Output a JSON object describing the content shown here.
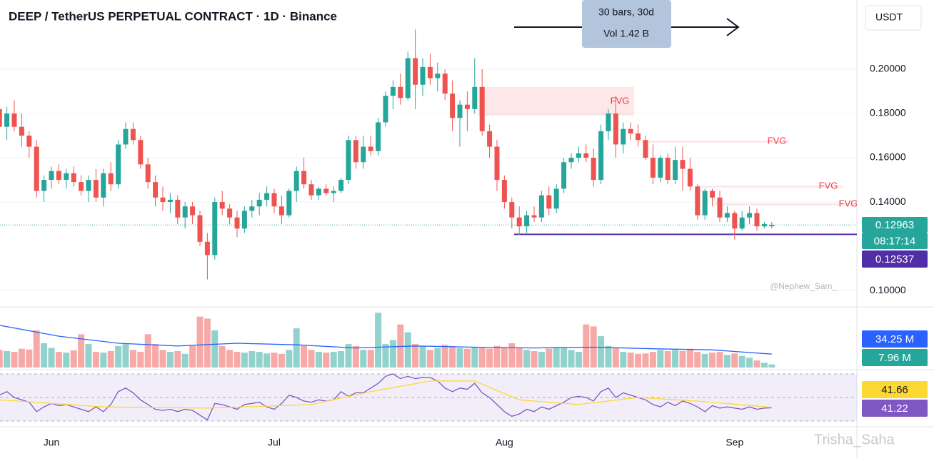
{
  "chart_data": {
    "type": "candlestick",
    "title": "DEEP / TetherUS PERPETUAL CONTRACT · 1D · Binance",
    "currency": "USDT",
    "measure": {
      "line1": "30 bars, 30d",
      "line2": "Vol 1.42 B"
    },
    "watermarks": [
      "@Nephew_Sam_",
      "Trisha_Saha"
    ],
    "colors": {
      "up": "#26a69a",
      "down": "#ef5350",
      "volume_ma": "#2962ff",
      "rsi": "#7e57c2",
      "rsi_ma": "#fdd835",
      "support": "#512da8"
    },
    "categories": [
      null,
      null,
      null,
      null,
      null,
      null,
      null,
      "Jun",
      null,
      null,
      null,
      null,
      null,
      null,
      null,
      null,
      null,
      null,
      null,
      null,
      null,
      null,
      null,
      null,
      null,
      null,
      null,
      null,
      null,
      null,
      null,
      null,
      null,
      null,
      null,
      null,
      null,
      "Jul",
      null,
      null,
      null,
      null,
      null,
      null,
      null,
      null,
      null,
      null,
      null,
      null,
      null,
      null,
      null,
      null,
      null,
      null,
      null,
      null,
      null,
      null,
      null,
      null,
      null,
      null,
      null,
      null,
      null,
      null,
      "Aug",
      null,
      null,
      null,
      null,
      null,
      null,
      null,
      null,
      null,
      null,
      null,
      null,
      null,
      null,
      null,
      null,
      null,
      null,
      null,
      null,
      null,
      null,
      null,
      null,
      null,
      null,
      null,
      null,
      null,
      null,
      "Sep",
      null,
      null,
      null,
      null,
      null
    ],
    "ohlc": [
      [
        0.182,
        0.186,
        0.17,
        0.174
      ],
      [
        0.174,
        0.183,
        0.168,
        0.18
      ],
      [
        0.18,
        0.186,
        0.172,
        0.174
      ],
      [
        0.174,
        0.18,
        0.165,
        0.17
      ],
      [
        0.17,
        0.172,
        0.16,
        0.165
      ],
      [
        0.165,
        0.168,
        0.142,
        0.145
      ],
      [
        0.145,
        0.152,
        0.14,
        0.15
      ],
      [
        0.15,
        0.156,
        0.146,
        0.154
      ],
      [
        0.154,
        0.157,
        0.148,
        0.15
      ],
      [
        0.15,
        0.155,
        0.146,
        0.153
      ],
      [
        0.153,
        0.156,
        0.147,
        0.149
      ],
      [
        0.149,
        0.152,
        0.143,
        0.145
      ],
      [
        0.145,
        0.152,
        0.14,
        0.15
      ],
      [
        0.15,
        0.155,
        0.14,
        0.142
      ],
      [
        0.142,
        0.155,
        0.138,
        0.153
      ],
      [
        0.153,
        0.158,
        0.145,
        0.148
      ],
      [
        0.148,
        0.168,
        0.146,
        0.166
      ],
      [
        0.166,
        0.176,
        0.164,
        0.173
      ],
      [
        0.173,
        0.176,
        0.166,
        0.168
      ],
      [
        0.168,
        0.17,
        0.155,
        0.157
      ],
      [
        0.157,
        0.16,
        0.146,
        0.149
      ],
      [
        0.149,
        0.152,
        0.138,
        0.142
      ],
      [
        0.142,
        0.147,
        0.136,
        0.14
      ],
      [
        0.14,
        0.144,
        0.135,
        0.141
      ],
      [
        0.141,
        0.143,
        0.13,
        0.133
      ],
      [
        0.133,
        0.14,
        0.128,
        0.138
      ],
      [
        0.138,
        0.14,
        0.13,
        0.134
      ],
      [
        0.134,
        0.136,
        0.12,
        0.122
      ],
      [
        0.122,
        0.126,
        0.105,
        0.116
      ],
      [
        0.116,
        0.142,
        0.114,
        0.14
      ],
      [
        0.14,
        0.145,
        0.134,
        0.137
      ],
      [
        0.137,
        0.139,
        0.13,
        0.133
      ],
      [
        0.133,
        0.136,
        0.124,
        0.128
      ],
      [
        0.128,
        0.138,
        0.126,
        0.136
      ],
      [
        0.136,
        0.141,
        0.133,
        0.138
      ],
      [
        0.138,
        0.144,
        0.134,
        0.141
      ],
      [
        0.141,
        0.147,
        0.138,
        0.144
      ],
      [
        0.144,
        0.146,
        0.135,
        0.138
      ],
      [
        0.138,
        0.143,
        0.13,
        0.134
      ],
      [
        0.134,
        0.146,
        0.133,
        0.145
      ],
      [
        0.145,
        0.156,
        0.14,
        0.154
      ],
      [
        0.154,
        0.16,
        0.146,
        0.148
      ],
      [
        0.148,
        0.15,
        0.141,
        0.143
      ],
      [
        0.143,
        0.147,
        0.141,
        0.146
      ],
      [
        0.146,
        0.148,
        0.143,
        0.144
      ],
      [
        0.144,
        0.147,
        0.14,
        0.145
      ],
      [
        0.145,
        0.151,
        0.144,
        0.15
      ],
      [
        0.15,
        0.17,
        0.148,
        0.168
      ],
      [
        0.168,
        0.17,
        0.155,
        0.158
      ],
      [
        0.158,
        0.17,
        0.155,
        0.165
      ],
      [
        0.165,
        0.17,
        0.161,
        0.163
      ],
      [
        0.163,
        0.178,
        0.161,
        0.176
      ],
      [
        0.176,
        0.19,
        0.174,
        0.188
      ],
      [
        0.188,
        0.195,
        0.182,
        0.192
      ],
      [
        0.192,
        0.198,
        0.184,
        0.187
      ],
      [
        0.187,
        0.208,
        0.186,
        0.205
      ],
      [
        0.205,
        0.218,
        0.182,
        0.193
      ],
      [
        0.193,
        0.205,
        0.188,
        0.201
      ],
      [
        0.201,
        0.207,
        0.193,
        0.196
      ],
      [
        0.196,
        0.203,
        0.19,
        0.198
      ],
      [
        0.198,
        0.2,
        0.186,
        0.189
      ],
      [
        0.189,
        0.195,
        0.172,
        0.178
      ],
      [
        0.178,
        0.186,
        0.165,
        0.184
      ],
      [
        0.184,
        0.19,
        0.172,
        0.182
      ],
      [
        0.182,
        0.205,
        0.18,
        0.192
      ],
      [
        0.192,
        0.2,
        0.17,
        0.172
      ],
      [
        0.172,
        0.175,
        0.16,
        0.165
      ],
      [
        0.165,
        0.168,
        0.145,
        0.15
      ],
      [
        0.15,
        0.152,
        0.137,
        0.14
      ],
      [
        0.14,
        0.142,
        0.128,
        0.133
      ],
      [
        0.133,
        0.138,
        0.125,
        0.129
      ],
      [
        0.129,
        0.136,
        0.126,
        0.134
      ],
      [
        0.134,
        0.138,
        0.131,
        0.133
      ],
      [
        0.133,
        0.145,
        0.131,
        0.143
      ],
      [
        0.143,
        0.147,
        0.134,
        0.137
      ],
      [
        0.137,
        0.148,
        0.135,
        0.146
      ],
      [
        0.146,
        0.16,
        0.144,
        0.158
      ],
      [
        0.158,
        0.162,
        0.155,
        0.16
      ],
      [
        0.16,
        0.165,
        0.158,
        0.162
      ],
      [
        0.162,
        0.166,
        0.158,
        0.16
      ],
      [
        0.16,
        0.164,
        0.147,
        0.15
      ],
      [
        0.15,
        0.175,
        0.148,
        0.172
      ],
      [
        0.172,
        0.182,
        0.168,
        0.18
      ],
      [
        0.18,
        0.188,
        0.16,
        0.166
      ],
      [
        0.166,
        0.176,
        0.162,
        0.173
      ],
      [
        0.173,
        0.176,
        0.168,
        0.171
      ],
      [
        0.171,
        0.175,
        0.165,
        0.168
      ],
      [
        0.168,
        0.17,
        0.159,
        0.16
      ],
      [
        0.16,
        0.166,
        0.148,
        0.151
      ],
      [
        0.151,
        0.161,
        0.149,
        0.16
      ],
      [
        0.16,
        0.162,
        0.148,
        0.15
      ],
      [
        0.15,
        0.165,
        0.148,
        0.159
      ],
      [
        0.159,
        0.165,
        0.145,
        0.155
      ],
      [
        0.155,
        0.16,
        0.145,
        0.147
      ],
      [
        0.147,
        0.148,
        0.132,
        0.134
      ],
      [
        0.134,
        0.146,
        0.132,
        0.145
      ],
      [
        0.145,
        0.146,
        0.138,
        0.142
      ],
      [
        0.142,
        0.145,
        0.131,
        0.133
      ],
      [
        0.133,
        0.138,
        0.131,
        0.135
      ],
      [
        0.135,
        0.136,
        0.123,
        0.128
      ],
      [
        0.128,
        0.136,
        0.127,
        0.133
      ],
      [
        0.133,
        0.138,
        0.13,
        0.135
      ],
      [
        0.135,
        0.137,
        0.127,
        0.129
      ],
      [
        0.129,
        0.131,
        0.128,
        0.13
      ],
      [
        0.129,
        0.131,
        0.128,
        0.12963
      ]
    ],
    "ylim": [
      0.0926,
      0.2313
    ],
    "yticks": [
      {
        "value": 0.2,
        "label": "0.20000"
      },
      {
        "value": 0.18,
        "label": "0.18000"
      },
      {
        "value": 0.16,
        "label": "0.16000"
      },
      {
        "value": 0.14,
        "label": "0.14000"
      },
      {
        "value": 0.1,
        "label": "0.10000"
      }
    ],
    "last_price": 0.12963,
    "countdown": "08:17:14",
    "support": 0.12537,
    "fvg": [
      {
        "label": "FVG",
        "top": 0.192,
        "bottom": 0.179
      },
      {
        "label": "FVG",
        "top": 0.1677,
        "bottom": 0.1668
      },
      {
        "label": "FVG",
        "top": 0.1474,
        "bottom": 0.1465
      },
      {
        "label": "FVG",
        "top": 0.1394,
        "bottom": 0.1384
      }
    ],
    "volume": [
      45,
      42,
      40,
      48,
      46,
      95,
      62,
      50,
      40,
      38,
      44,
      85,
      60,
      40,
      38,
      42,
      55,
      60,
      45,
      40,
      85,
      60,
      45,
      40,
      42,
      35,
      55,
      130,
      125,
      95,
      55,
      45,
      40,
      38,
      42,
      40,
      36,
      38,
      35,
      45,
      100,
      55,
      45,
      40,
      38,
      40,
      42,
      60,
      55,
      45,
      45,
      140,
      60,
      70,
      110,
      90,
      60,
      55,
      45,
      50,
      58,
      55,
      50,
      48,
      52,
      50,
      48,
      55,
      50,
      62,
      50,
      45,
      42,
      40,
      48,
      52,
      50,
      45,
      40,
      110,
      105,
      80,
      55,
      50,
      40,
      38,
      35,
      36,
      40,
      45,
      42,
      45,
      42,
      48,
      40,
      35,
      38,
      40,
      32,
      36,
      30,
      25,
      18,
      12,
      7.96
    ],
    "volume_last_label": "7.96 M",
    "volume_ylim": [
      0,
      155
    ],
    "volume_ma": {
      "x": [
        0,
        8,
        16,
        24,
        32,
        40,
        48,
        56,
        64,
        72,
        80,
        88,
        96,
        104
      ],
      "values": [
        108,
        80,
        62,
        55,
        62,
        58,
        50,
        55,
        52,
        50,
        52,
        48,
        45,
        34.25
      ],
      "last_label": "34.25 M"
    },
    "rsi": [
      52,
      55,
      50,
      48,
      46,
      38,
      42,
      45,
      43,
      44,
      42,
      40,
      38,
      42,
      38,
      44,
      55,
      58,
      54,
      48,
      44,
      40,
      39,
      40,
      38,
      40,
      39,
      35,
      31,
      45,
      44,
      42,
      40,
      44,
      45,
      46,
      42,
      40,
      45,
      52,
      50,
      47,
      46,
      48,
      47,
      48,
      55,
      51,
      54,
      54,
      58,
      62,
      68,
      70,
      66,
      68,
      66,
      67,
      67,
      64,
      58,
      55,
      58,
      57,
      62,
      54,
      50,
      44,
      38,
      34,
      36,
      40,
      38,
      42,
      40,
      43,
      46,
      50,
      51,
      50,
      47,
      55,
      58,
      50,
      54,
      52,
      50,
      48,
      44,
      42,
      46,
      43,
      47,
      45,
      42,
      38,
      43,
      41,
      42,
      41,
      40,
      42,
      40,
      41,
      41.22
    ],
    "rsi_ma": {
      "x": [
        0,
        14,
        28,
        42,
        50,
        58,
        64,
        70,
        78,
        86,
        94,
        104
      ],
      "values": [
        48,
        42,
        41,
        44,
        55,
        64,
        64,
        48,
        44,
        50,
        47,
        41.66
      ]
    },
    "rsi_ylim": [
      30,
      70
    ],
    "rsi_levels": [
      70,
      50,
      30
    ]
  }
}
